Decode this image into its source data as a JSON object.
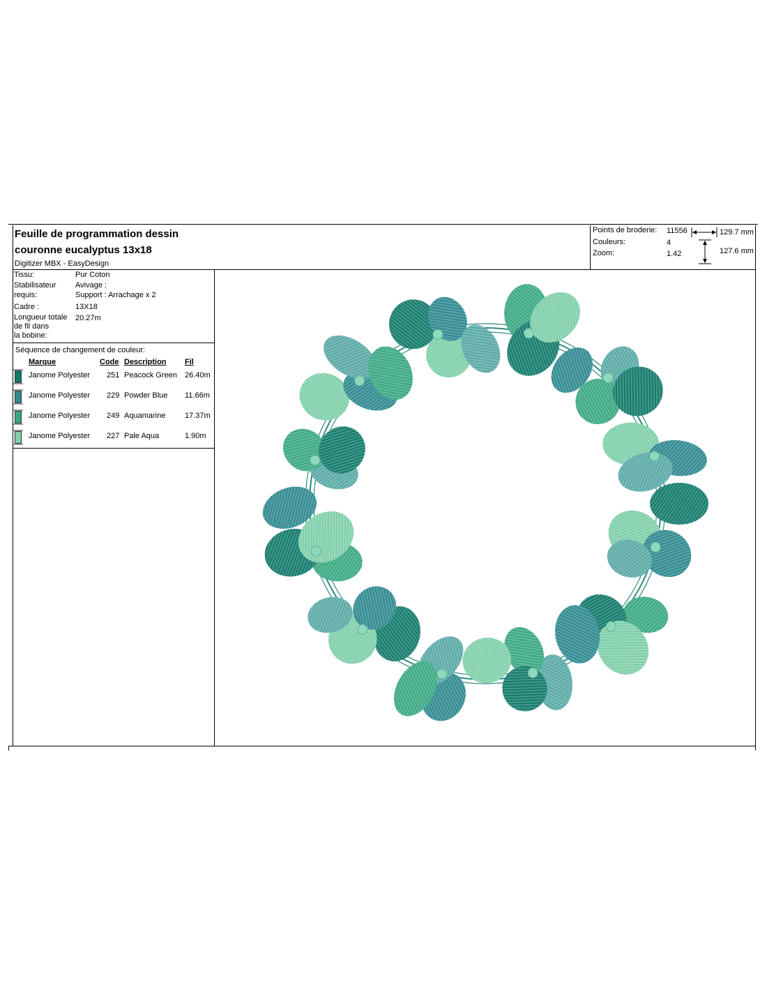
{
  "header": {
    "title_line1": "Feuille de programmation dessin",
    "title_line2": "couronne eucalyptus 13x18",
    "software": "Digitizer MBX - EasyDesign"
  },
  "stats": {
    "stitches_label": "Points de broderie:",
    "stitches_value": "11556",
    "colors_label": "Couleurs:",
    "colors_value": "4",
    "zoom_label": "Zoom:",
    "zoom_value": "1.42",
    "width": "129.7 mm",
    "height": "127.6 mm"
  },
  "info": {
    "fabric_label": "Tissu:",
    "fabric_value": "Pur Coton",
    "stabilizer_label_1": "Stabilisateur",
    "stabilizer_label_2": "requis:",
    "stabilizer_value_1": "Avivage :",
    "stabilizer_value_2": "Support : Arrachage x 2",
    "frame_label": "Cadre :",
    "frame_value": "13X18",
    "bobbin_label_1": "Longueur totale",
    "bobbin_label_2": "de fil dans",
    "bobbin_label_3": "la bobine:",
    "bobbin_value": "20.27m"
  },
  "sequence": {
    "title": "Séquence de changement de couleur:",
    "headers": {
      "brand": "Marque",
      "code": "Code",
      "description": "Description",
      "thread": "Fil"
    },
    "rows": [
      {
        "brand": "Janome Polyester",
        "code": "251",
        "description": "Peacock Green",
        "thread": "26.40m",
        "color": "#137a6b"
      },
      {
        "brand": "Janome Polyester",
        "code": "229",
        "description": "Powder Blue",
        "thread": "11.66m",
        "color": "#2f8a90"
      },
      {
        "brand": "Janome Polyester",
        "code": "249",
        "description": "Aquamarine",
        "thread": "17.37m",
        "color": "#3aa882"
      },
      {
        "brand": "Janome Polyester",
        "code": "227",
        "description": "Pale Aqua",
        "thread": "1.90m",
        "color": "#7fcfa9"
      }
    ]
  },
  "design": {
    "leaf_colors": [
      "#137a6b",
      "#2f8a90",
      "#3aa882",
      "#7fcfa9",
      "#5aa9a6"
    ],
    "stem_color": "#2f8a80",
    "bud_color": "#8fd9bd",
    "leaf_count": 44,
    "bud_count": 12
  }
}
